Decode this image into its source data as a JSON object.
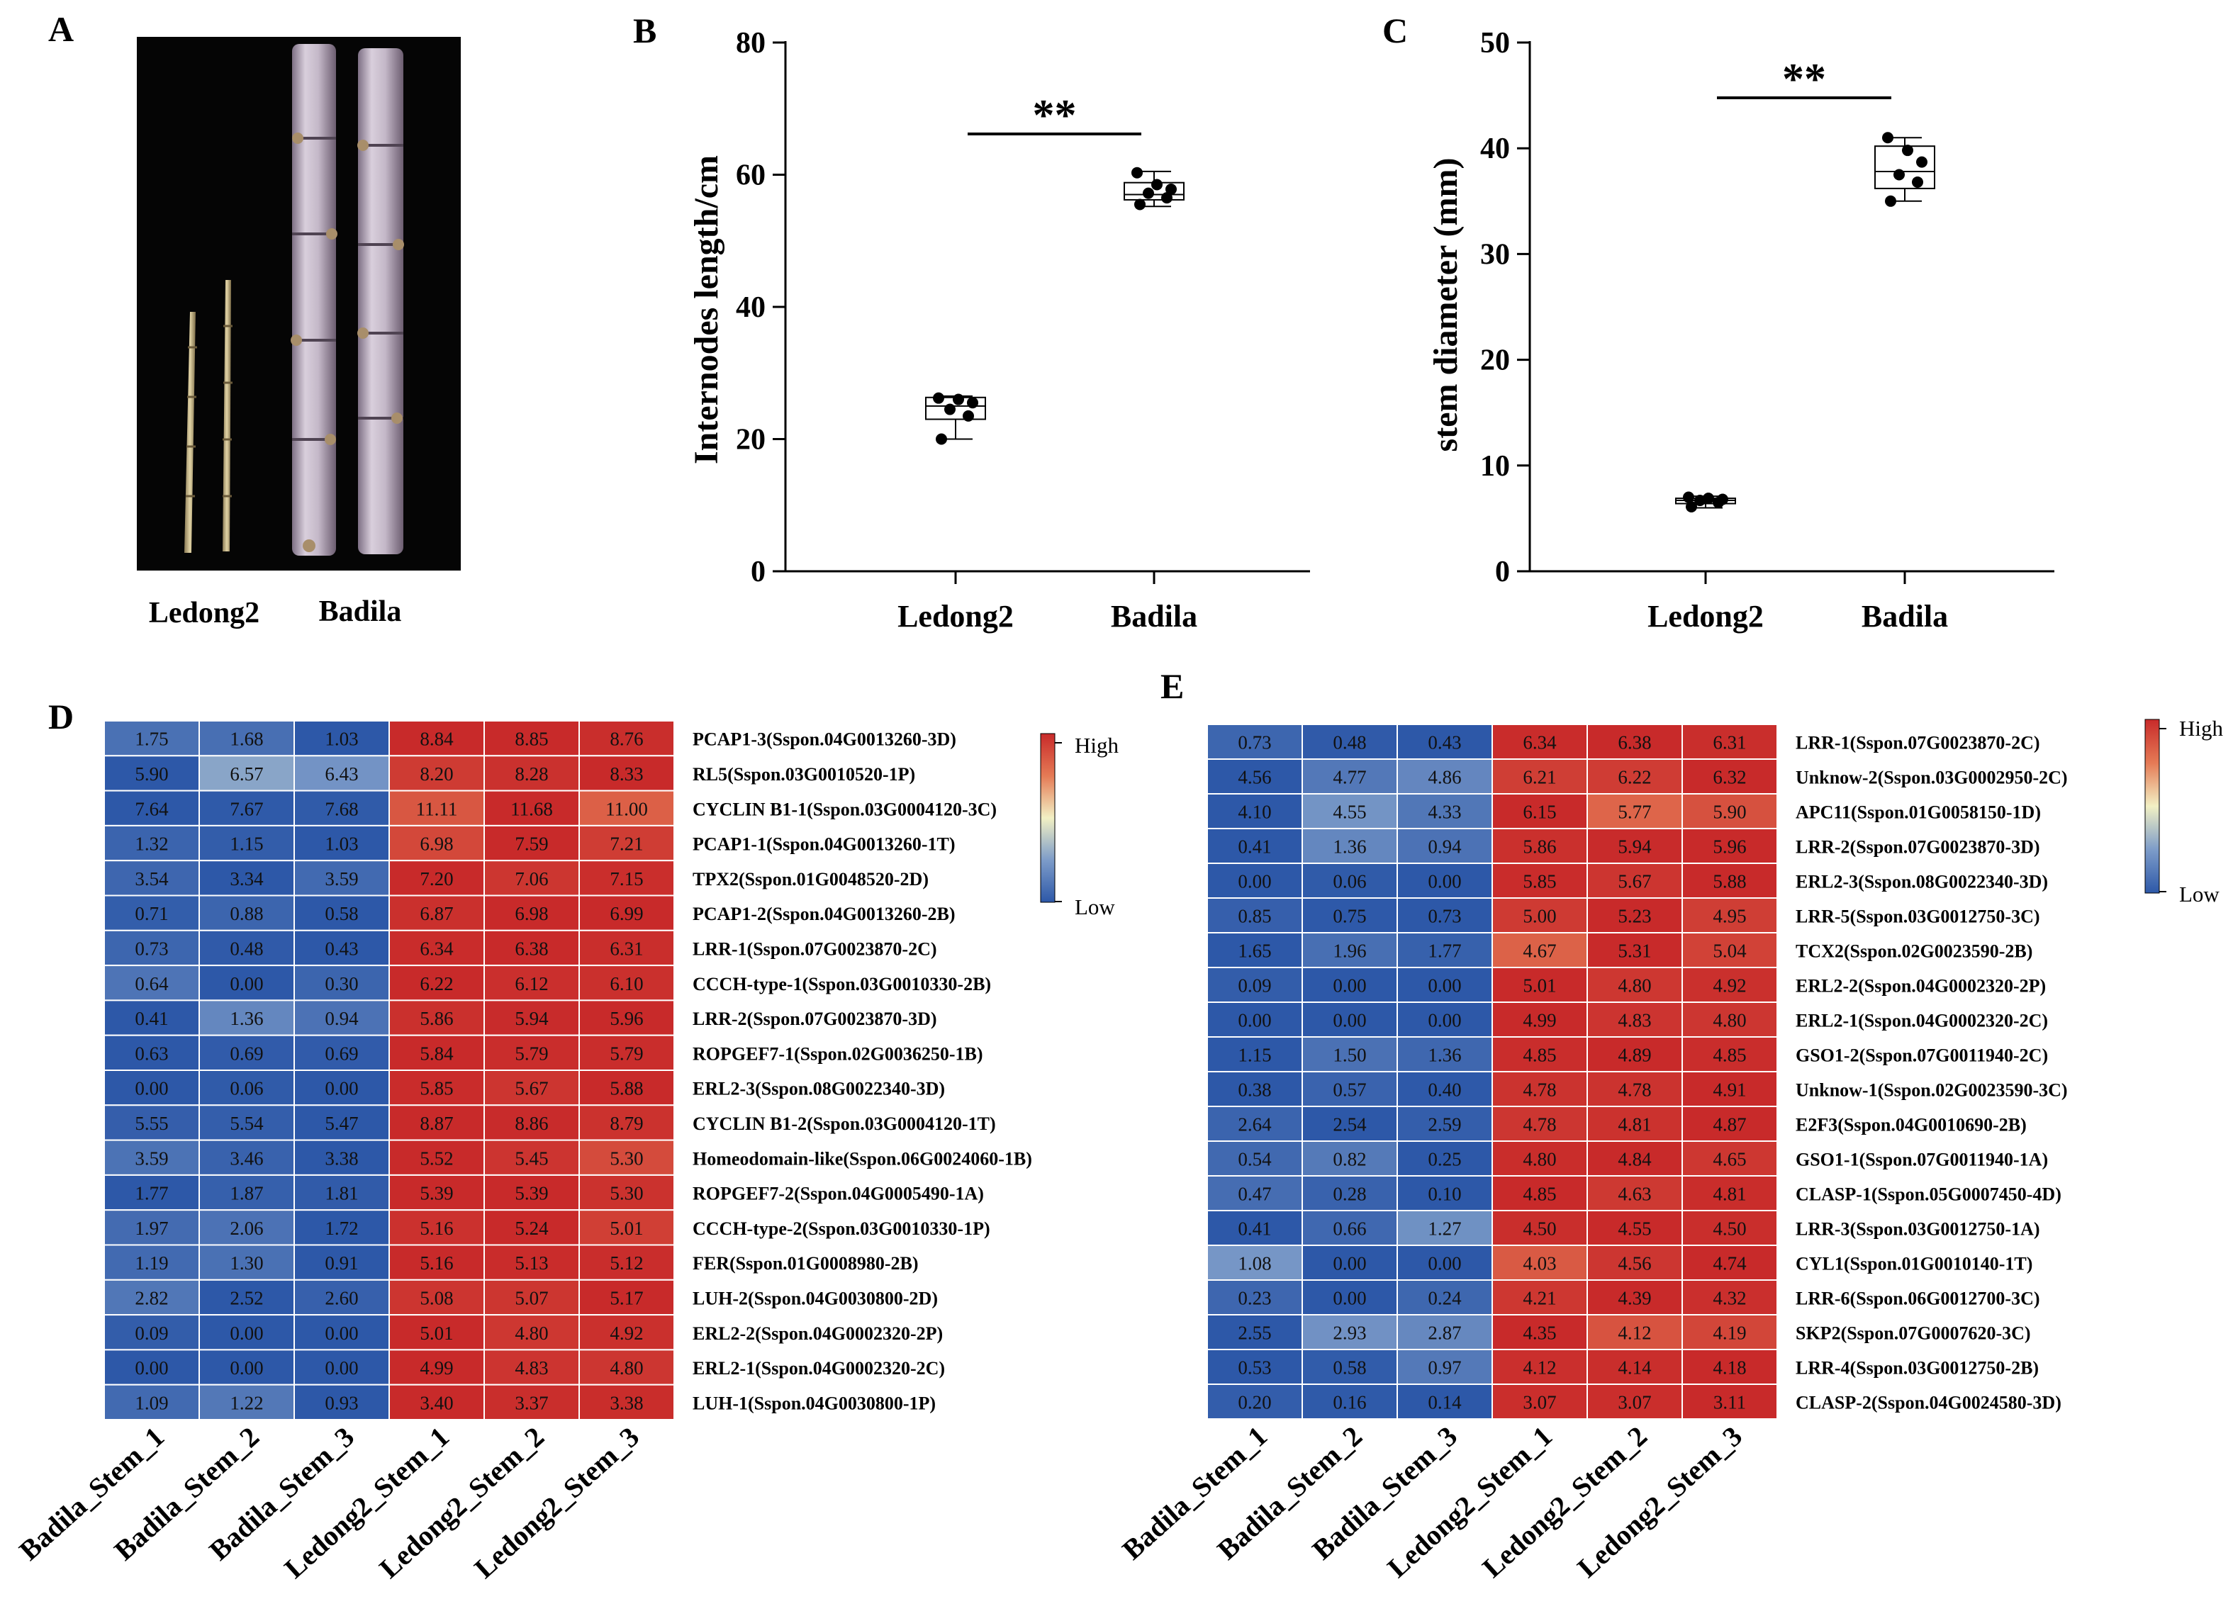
{
  "panels": {
    "a": {
      "letter": "A",
      "labels": [
        "Ledong2",
        "Badila"
      ]
    },
    "b": {
      "letter": "B"
    },
    "c": {
      "letter": "C"
    },
    "d": {
      "letter": "D"
    },
    "e": {
      "letter": "E"
    }
  },
  "legend": {
    "high": "High",
    "low": "Low",
    "colors": {
      "low": "#2d58a8",
      "mid": "#f2f0c4",
      "high": "#c82a2a"
    }
  },
  "colors": {
    "axis": "#000000",
    "photo_bg": "#050505",
    "cane": "#c9bdc9",
    "thin_cane": "#d8c79a"
  },
  "chart_data": [
    {
      "type": "box",
      "panel": "B",
      "ylabel": "Internodes length/cm",
      "categories": [
        "Ledong2",
        "Badila"
      ],
      "ylim": [
        0,
        80
      ],
      "yticks": [
        0,
        20,
        40,
        60,
        80
      ],
      "significance": "**",
      "boxes": [
        {
          "name": "Ledong2",
          "min": 20,
          "q1": 23,
          "median": 25,
          "q3": 26.3,
          "max": 26.5,
          "points": [
            20,
            23.5,
            24.5,
            25.5,
            26,
            26.2
          ]
        },
        {
          "name": "Badila",
          "min": 55.2,
          "q1": 56.2,
          "median": 57,
          "q3": 58.8,
          "max": 60.5,
          "points": [
            55.5,
            56.5,
            57.2,
            57.8,
            58.5,
            60.3
          ]
        }
      ]
    },
    {
      "type": "box",
      "panel": "C",
      "ylabel": "stem diameter (mm)",
      "categories": [
        "Ledong2",
        "Badila"
      ],
      "ylim": [
        0,
        50
      ],
      "yticks": [
        0,
        10,
        20,
        30,
        40,
        50
      ],
      "significance": "**",
      "boxes": [
        {
          "name": "Ledong2",
          "min": 6,
          "q1": 6.4,
          "median": 6.7,
          "q3": 6.9,
          "max": 7.1,
          "points": [
            6.1,
            6.5,
            6.7,
            6.8,
            6.9,
            7
          ]
        },
        {
          "name": "Badila",
          "min": 35,
          "q1": 36.2,
          "median": 37.8,
          "q3": 40.2,
          "max": 41,
          "points": [
            35,
            36.8,
            37.5,
            38.7,
            39.8,
            41
          ]
        }
      ]
    },
    {
      "type": "heatmap",
      "panel": "D",
      "columns": [
        "Badila_Stem_1",
        "Badila_Stem_2",
        "Badila_Stem_3",
        "Ledong2_Stem_1",
        "Ledong2_Stem_2",
        "Ledong2_Stem_3"
      ],
      "rows": [
        {
          "gene": "PCAP1-3(Sspon.04G0013260-3D)",
          "values": [
            1.75,
            1.68,
            1.03,
            8.84,
            8.85,
            8.76
          ]
        },
        {
          "gene": "RL5(Sspon.03G0010520-1P)",
          "values": [
            5.9,
            6.57,
            6.43,
            8.2,
            8.28,
            8.33
          ]
        },
        {
          "gene": "CYCLIN B1-1(Sspon.03G0004120-3C)",
          "values": [
            7.64,
            7.67,
            7.68,
            11.11,
            11.68,
            11.0
          ]
        },
        {
          "gene": "PCAP1-1(Sspon.04G0013260-1T)",
          "values": [
            1.32,
            1.15,
            1.03,
            6.98,
            7.59,
            7.21
          ]
        },
        {
          "gene": "TPX2(Sspon.01G0048520-2D)",
          "values": [
            3.54,
            3.34,
            3.59,
            7.2,
            7.06,
            7.15
          ]
        },
        {
          "gene": "PCAP1-2(Sspon.04G0013260-2B)",
          "values": [
            0.71,
            0.88,
            0.58,
            6.87,
            6.98,
            6.99
          ]
        },
        {
          "gene": "LRR-1(Sspon.07G0023870-2C)",
          "values": [
            0.73,
            0.48,
            0.43,
            6.34,
            6.38,
            6.31
          ]
        },
        {
          "gene": "CCCH-type-1(Sspon.03G0010330-2B)",
          "values": [
            0.64,
            0.0,
            0.3,
            6.22,
            6.12,
            6.1
          ]
        },
        {
          "gene": "LRR-2(Sspon.07G0023870-3D)",
          "values": [
            0.41,
            1.36,
            0.94,
            5.86,
            5.94,
            5.96
          ]
        },
        {
          "gene": "ROPGEF7-1(Sspon.02G0036250-1B)",
          "values": [
            0.63,
            0.69,
            0.69,
            5.84,
            5.79,
            5.79
          ]
        },
        {
          "gene": "ERL2-3(Sspon.08G0022340-3D)",
          "values": [
            0.0,
            0.06,
            0.0,
            5.85,
            5.67,
            5.88
          ]
        },
        {
          "gene": "CYCLIN B1-2(Sspon.03G0004120-1T)",
          "values": [
            5.55,
            5.54,
            5.47,
            8.87,
            8.86,
            8.79
          ]
        },
        {
          "gene": "Homeodomain-like(Sspon.06G0024060-1B)",
          "values": [
            3.59,
            3.46,
            3.38,
            5.52,
            5.45,
            5.3
          ]
        },
        {
          "gene": "ROPGEF7-2(Sspon.04G0005490-1A)",
          "values": [
            1.77,
            1.87,
            1.81,
            5.39,
            5.39,
            5.3
          ]
        },
        {
          "gene": "CCCH-type-2(Sspon.03G0010330-1P)",
          "values": [
            1.97,
            2.06,
            1.72,
            5.16,
            5.24,
            5.01
          ]
        },
        {
          "gene": "FER(Sspon.01G0008980-2B)",
          "values": [
            1.19,
            1.3,
            0.91,
            5.16,
            5.13,
            5.12
          ]
        },
        {
          "gene": "LUH-2(Sspon.04G0030800-2D)",
          "values": [
            2.82,
            2.52,
            2.6,
            5.08,
            5.07,
            5.17
          ]
        },
        {
          "gene": "ERL2-2(Sspon.04G0002320-2P)",
          "values": [
            0.09,
            0.0,
            0.0,
            5.01,
            4.8,
            4.92
          ]
        },
        {
          "gene": "ERL2-1(Sspon.04G0002320-2C)",
          "values": [
            0.0,
            0.0,
            0.0,
            4.99,
            4.83,
            4.8
          ]
        },
        {
          "gene": "LUH-1(Sspon.04G0030800-1P)",
          "values": [
            1.09,
            1.22,
            0.93,
            3.4,
            3.37,
            3.38
          ]
        }
      ]
    },
    {
      "type": "heatmap",
      "panel": "E",
      "columns": [
        "Badila_Stem_1",
        "Badila_Stem_2",
        "Badila_Stem_3",
        "Ledong2_Stem_1",
        "Ledong2_Stem_2",
        "Ledong2_Stem_3"
      ],
      "rows": [
        {
          "gene": "LRR-1(Sspon.07G0023870-2C)",
          "values": [
            0.73,
            0.48,
            0.43,
            6.34,
            6.38,
            6.31
          ]
        },
        {
          "gene": "Unknow-2(Sspon.03G0002950-2C)",
          "values": [
            4.56,
            4.77,
            4.86,
            6.21,
            6.22,
            6.32
          ]
        },
        {
          "gene": "APC11(Sspon.01G0058150-1D)",
          "values": [
            4.1,
            4.55,
            4.33,
            6.15,
            5.77,
            5.9
          ]
        },
        {
          "gene": "LRR-2(Sspon.07G0023870-3D)",
          "values": [
            0.41,
            1.36,
            0.94,
            5.86,
            5.94,
            5.96
          ]
        },
        {
          "gene": "ERL2-3(Sspon.08G0022340-3D)",
          "values": [
            0.0,
            0.06,
            0.0,
            5.85,
            5.67,
            5.88
          ]
        },
        {
          "gene": "LRR-5(Sspon.03G0012750-3C)",
          "values": [
            0.85,
            0.75,
            0.73,
            5.0,
            5.23,
            4.95
          ]
        },
        {
          "gene": "TCX2(Sspon.02G0023590-2B)",
          "values": [
            1.65,
            1.96,
            1.77,
            4.67,
            5.31,
            5.04
          ]
        },
        {
          "gene": "ERL2-2(Sspon.04G0002320-2P)",
          "values": [
            0.09,
            0.0,
            0.0,
            5.01,
            4.8,
            4.92
          ]
        },
        {
          "gene": "ERL2-1(Sspon.04G0002320-2C)",
          "values": [
            0.0,
            0.0,
            0.0,
            4.99,
            4.83,
            4.8
          ]
        },
        {
          "gene": "GSO1-2(Sspon.07G0011940-2C)",
          "values": [
            1.15,
            1.5,
            1.36,
            4.85,
            4.89,
            4.85
          ]
        },
        {
          "gene": "Unknow-1(Sspon.02G0023590-3C)",
          "values": [
            0.38,
            0.57,
            0.4,
            4.78,
            4.78,
            4.91
          ]
        },
        {
          "gene": "E2F3(Sspon.04G0010690-2B)",
          "values": [
            2.64,
            2.54,
            2.59,
            4.78,
            4.81,
            4.87
          ]
        },
        {
          "gene": "GSO1-1(Sspon.07G0011940-1A)",
          "values": [
            0.54,
            0.82,
            0.25,
            4.8,
            4.84,
            4.65
          ]
        },
        {
          "gene": "CLASP-1(Sspon.05G0007450-4D)",
          "values": [
            0.47,
            0.28,
            0.1,
            4.85,
            4.63,
            4.81
          ]
        },
        {
          "gene": "LRR-3(Sspon.03G0012750-1A)",
          "values": [
            0.41,
            0.66,
            1.27,
            4.5,
            4.55,
            4.5
          ]
        },
        {
          "gene": "CYL1(Sspon.01G0010140-1T)",
          "values": [
            1.08,
            0.0,
            0.0,
            4.03,
            4.56,
            4.74
          ]
        },
        {
          "gene": "LRR-6(Sspon.06G0012700-3C)",
          "values": [
            0.23,
            0.0,
            0.24,
            4.21,
            4.39,
            4.32
          ]
        },
        {
          "gene": "SKP2(Sspon.07G0007620-3C)",
          "values": [
            2.55,
            2.93,
            2.87,
            4.35,
            4.12,
            4.19
          ]
        },
        {
          "gene": "LRR-4(Sspon.03G0012750-2B)",
          "values": [
            0.53,
            0.58,
            0.97,
            4.12,
            4.14,
            4.18
          ]
        },
        {
          "gene": "CLASP-2(Sspon.04G0024580-3D)",
          "values": [
            0.2,
            0.16,
            0.14,
            3.07,
            3.07,
            3.11
          ]
        }
      ]
    }
  ]
}
